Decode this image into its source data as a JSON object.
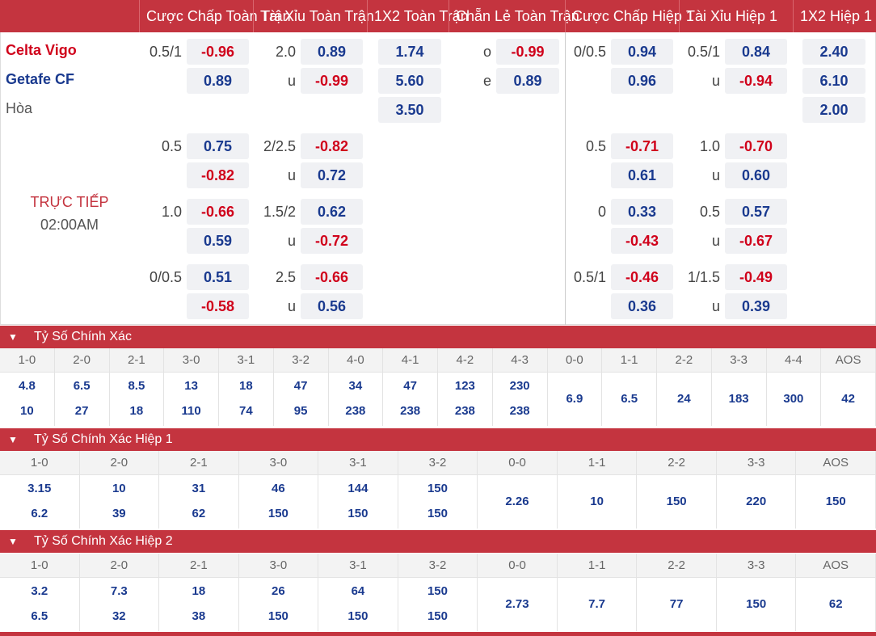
{
  "header": {
    "cols": [
      "Cược Chấp Toàn Trận",
      "Tài Xỉu Toàn Trận",
      "1X2 Toàn Trận",
      "Chẵn Lẻ Toàn Trận",
      "Cược Chấp Hiệp 1",
      "Tài Xỉu Hiệp 1",
      "1X2 Hiệp 1"
    ]
  },
  "match": {
    "home": "Celta Vigo",
    "away": "Getafe CF",
    "draw": "Hòa",
    "status": "TRỰC TIẾP",
    "time": "02:00AM"
  },
  "odds": {
    "g1": {
      "hdp_line": "0.5/1",
      "hdp": [
        "-0.96",
        "0.89"
      ],
      "ou_line": "2.0",
      "ou_u": "u",
      "ou": [
        "0.89",
        "-0.99"
      ],
      "x12": [
        "1.74",
        "5.60",
        "3.50"
      ],
      "oe_o": "o",
      "oe_e": "e",
      "oe": [
        "-0.99",
        "0.89"
      ],
      "h1hdp_line": "0/0.5",
      "h1hdp": [
        "0.94",
        "0.96"
      ],
      "h1ou_line": "0.5/1",
      "h1ou_u": "u",
      "h1ou": [
        "0.84",
        "-0.94"
      ],
      "h1x12": [
        "2.40",
        "6.10",
        "2.00"
      ]
    },
    "g2": {
      "hdp_line": "0.5",
      "hdp": [
        "0.75",
        "-0.82"
      ],
      "ou_line": "2/2.5",
      "ou_u": "u",
      "ou": [
        "-0.82",
        "0.72"
      ],
      "h1hdp_line": "0.5",
      "h1hdp": [
        "-0.71",
        "0.61"
      ],
      "h1ou_line": "1.0",
      "h1ou_u": "u",
      "h1ou": [
        "-0.70",
        "0.60"
      ]
    },
    "g3": {
      "hdp_line": "1.0",
      "hdp": [
        "-0.66",
        "0.59"
      ],
      "ou_line": "1.5/2",
      "ou_u": "u",
      "ou": [
        "0.62",
        "-0.72"
      ],
      "h1hdp_line": "0",
      "h1hdp": [
        "0.33",
        "-0.43"
      ],
      "h1ou_line": "0.5",
      "h1ou_u": "u",
      "h1ou": [
        "0.57",
        "-0.67"
      ]
    },
    "g4": {
      "hdp_line": "0/0.5",
      "hdp": [
        "0.51",
        "-0.58"
      ],
      "ou_line": "2.5",
      "ou_u": "u",
      "ou": [
        "-0.66",
        "0.56"
      ],
      "h1hdp_line": "0.5/1",
      "h1hdp": [
        "-0.46",
        "0.36"
      ],
      "h1ou_line": "1/1.5",
      "h1ou_u": "u",
      "h1ou": [
        "-0.49",
        "0.39"
      ]
    }
  },
  "sections": [
    {
      "title": "Tỷ Số Chính Xác",
      "cols": [
        {
          "score": "1-0",
          "v1": "4.8",
          "v2": "10"
        },
        {
          "score": "2-0",
          "v1": "6.5",
          "v2": "27"
        },
        {
          "score": "2-1",
          "v1": "8.5",
          "v2": "18"
        },
        {
          "score": "3-0",
          "v1": "13",
          "v2": "110"
        },
        {
          "score": "3-1",
          "v1": "18",
          "v2": "74"
        },
        {
          "score": "3-2",
          "v1": "47",
          "v2": "95"
        },
        {
          "score": "4-0",
          "v1": "34",
          "v2": "238"
        },
        {
          "score": "4-1",
          "v1": "47",
          "v2": "238"
        },
        {
          "score": "4-2",
          "v1": "123",
          "v2": "238"
        },
        {
          "score": "4-3",
          "v1": "230",
          "v2": "238"
        },
        {
          "score": "0-0",
          "vm": "6.9"
        },
        {
          "score": "1-1",
          "vm": "6.5"
        },
        {
          "score": "2-2",
          "vm": "24"
        },
        {
          "score": "3-3",
          "vm": "183"
        },
        {
          "score": "4-4",
          "vm": "300"
        },
        {
          "score": "AOS",
          "vm": "42"
        }
      ]
    },
    {
      "title": "Tỷ Số Chính Xác Hiệp 1",
      "cols": [
        {
          "score": "1-0",
          "v1": "3.15",
          "v2": "6.2"
        },
        {
          "score": "2-0",
          "v1": "10",
          "v2": "39"
        },
        {
          "score": "2-1",
          "v1": "31",
          "v2": "62"
        },
        {
          "score": "3-0",
          "v1": "46",
          "v2": "150"
        },
        {
          "score": "3-1",
          "v1": "144",
          "v2": "150"
        },
        {
          "score": "3-2",
          "v1": "150",
          "v2": "150"
        },
        {
          "score": "0-0",
          "vm": "2.26"
        },
        {
          "score": "1-1",
          "vm": "10"
        },
        {
          "score": "2-2",
          "vm": "150"
        },
        {
          "score": "3-3",
          "vm": "220"
        },
        {
          "score": "AOS",
          "vm": "150"
        }
      ]
    },
    {
      "title": "Tỷ Số Chính Xác Hiệp 2",
      "cols": [
        {
          "score": "1-0",
          "v1": "3.2",
          "v2": "6.5"
        },
        {
          "score": "2-0",
          "v1": "7.3",
          "v2": "32"
        },
        {
          "score": "2-1",
          "v1": "18",
          "v2": "38"
        },
        {
          "score": "3-0",
          "v1": "26",
          "v2": "150"
        },
        {
          "score": "3-1",
          "v1": "64",
          "v2": "150"
        },
        {
          "score": "3-2",
          "v1": "150",
          "v2": "150"
        },
        {
          "score": "0-0",
          "vm": "2.73"
        },
        {
          "score": "1-1",
          "vm": "7.7"
        },
        {
          "score": "2-2",
          "vm": "77"
        },
        {
          "score": "3-3",
          "vm": "150"
        },
        {
          "score": "AOS",
          "vm": "62"
        }
      ]
    }
  ],
  "icons": {
    "section_toggle": "chevron-down-icon"
  },
  "colors": {
    "brand": "#c4343f",
    "positive": "#1a3a8f",
    "negative": "#d0021b"
  }
}
